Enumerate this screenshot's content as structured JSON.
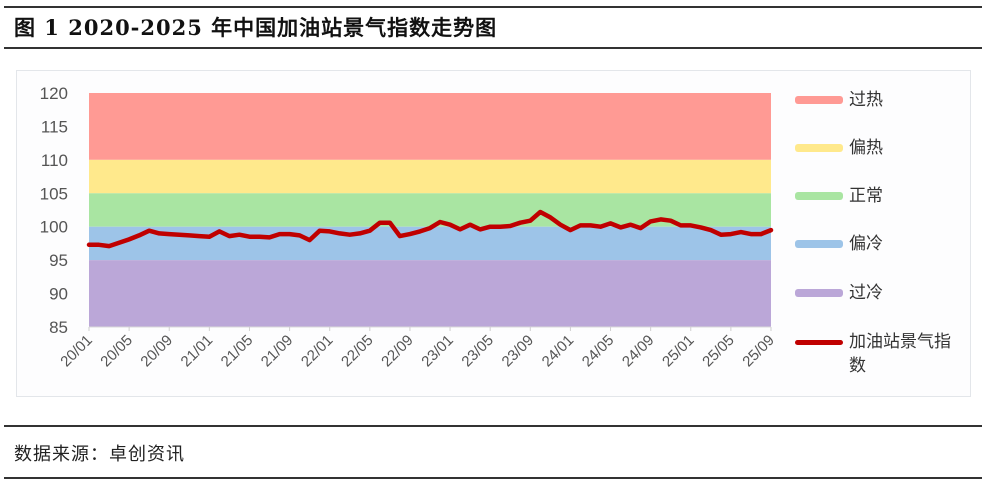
{
  "title": "图 1  2020-2025 年中国加油站景气指数走势图",
  "source": "数据来源：卓创资讯",
  "colors": {
    "overheat": "#FF9A94",
    "warm": "#FFE98C",
    "normal": "#A9E5A2",
    "cool": "#9DC4E8",
    "overcold": "#BBA7D8",
    "line": "#C00000"
  },
  "legend": [
    {
      "label": "过热",
      "color": "#FF9A94"
    },
    {
      "label": "偏热",
      "color": "#FFE98C"
    },
    {
      "label": "正常",
      "color": "#A9E5A2"
    },
    {
      "label": "偏冷",
      "color": "#9DC4E8"
    },
    {
      "label": "过冷",
      "color": "#BBA7D8"
    },
    {
      "label": "加油站景气指数",
      "color": "#C00000"
    }
  ],
  "chart_data": {
    "type": "line",
    "title": "2020-2025 年中国加油站景气指数走势图",
    "xlabel": "",
    "ylabel": "",
    "ylim": [
      85,
      120
    ],
    "yticks": [
      85,
      90,
      95,
      100,
      105,
      110,
      115,
      120
    ],
    "xtick_labels": [
      "20/01",
      "20/05",
      "20/09",
      "21/01",
      "21/05",
      "21/09",
      "22/01",
      "22/05",
      "22/09",
      "23/01",
      "23/05",
      "23/09",
      "24/01",
      "24/05",
      "24/09",
      "25/01",
      "25/05",
      "25/09"
    ],
    "grid": false,
    "legend_position": "right",
    "bands": [
      {
        "name": "过热",
        "from": 110,
        "to": 120,
        "color": "#FF9A94"
      },
      {
        "name": "偏热",
        "from": 105,
        "to": 110,
        "color": "#FFE98C"
      },
      {
        "name": "正常",
        "from": 100,
        "to": 105,
        "color": "#A9E5A2"
      },
      {
        "name": "偏冷",
        "from": 95,
        "to": 100,
        "color": "#9DC4E8"
      },
      {
        "name": "过冷",
        "from": 85,
        "to": 95,
        "color": "#BBA7D8"
      }
    ],
    "series": [
      {
        "name": "加油站景气指数",
        "color": "#C00000",
        "x": [
          "20/01",
          "20/02",
          "20/03",
          "20/04",
          "20/05",
          "20/06",
          "20/07",
          "20/08",
          "20/09",
          "20/10",
          "20/11",
          "20/12",
          "21/01",
          "21/02",
          "21/03",
          "21/04",
          "21/05",
          "21/06",
          "21/07",
          "21/08",
          "21/09",
          "21/10",
          "21/11",
          "21/12",
          "22/01",
          "22/02",
          "22/03",
          "22/04",
          "22/05",
          "22/06",
          "22/07",
          "22/08",
          "22/09",
          "22/10",
          "22/11",
          "22/12",
          "23/01",
          "23/02",
          "23/03",
          "23/04",
          "23/05",
          "23/06",
          "23/07",
          "23/08",
          "23/09",
          "23/10",
          "23/11",
          "23/12",
          "24/01",
          "24/02",
          "24/03",
          "24/04",
          "24/05",
          "24/06",
          "24/07",
          "24/08",
          "24/09",
          "24/10",
          "24/11",
          "24/12",
          "25/01",
          "25/02",
          "25/03",
          "25/04",
          "25/05",
          "25/06",
          "25/07",
          "25/08",
          "25/09"
        ],
        "values": [
          97.3,
          97.3,
          97.1,
          97.6,
          98.1,
          98.7,
          99.4,
          99.0,
          98.9,
          98.8,
          98.7,
          98.6,
          98.5,
          99.3,
          98.6,
          98.8,
          98.5,
          98.5,
          98.4,
          98.9,
          98.9,
          98.7,
          98.0,
          99.4,
          99.3,
          99.0,
          98.8,
          99.0,
          99.4,
          100.6,
          100.6,
          98.6,
          98.9,
          99.3,
          99.8,
          100.7,
          100.3,
          99.6,
          100.3,
          99.6,
          100.0,
          100.0,
          100.1,
          100.6,
          100.9,
          102.2,
          101.4,
          100.3,
          99.5,
          100.2,
          100.2,
          100.0,
          100.5,
          99.9,
          100.3,
          99.8,
          100.8,
          101.1,
          100.9,
          100.2,
          100.2,
          99.9,
          99.5,
          98.8,
          98.9,
          99.2,
          98.9,
          98.9,
          99.5
        ]
      }
    ]
  }
}
